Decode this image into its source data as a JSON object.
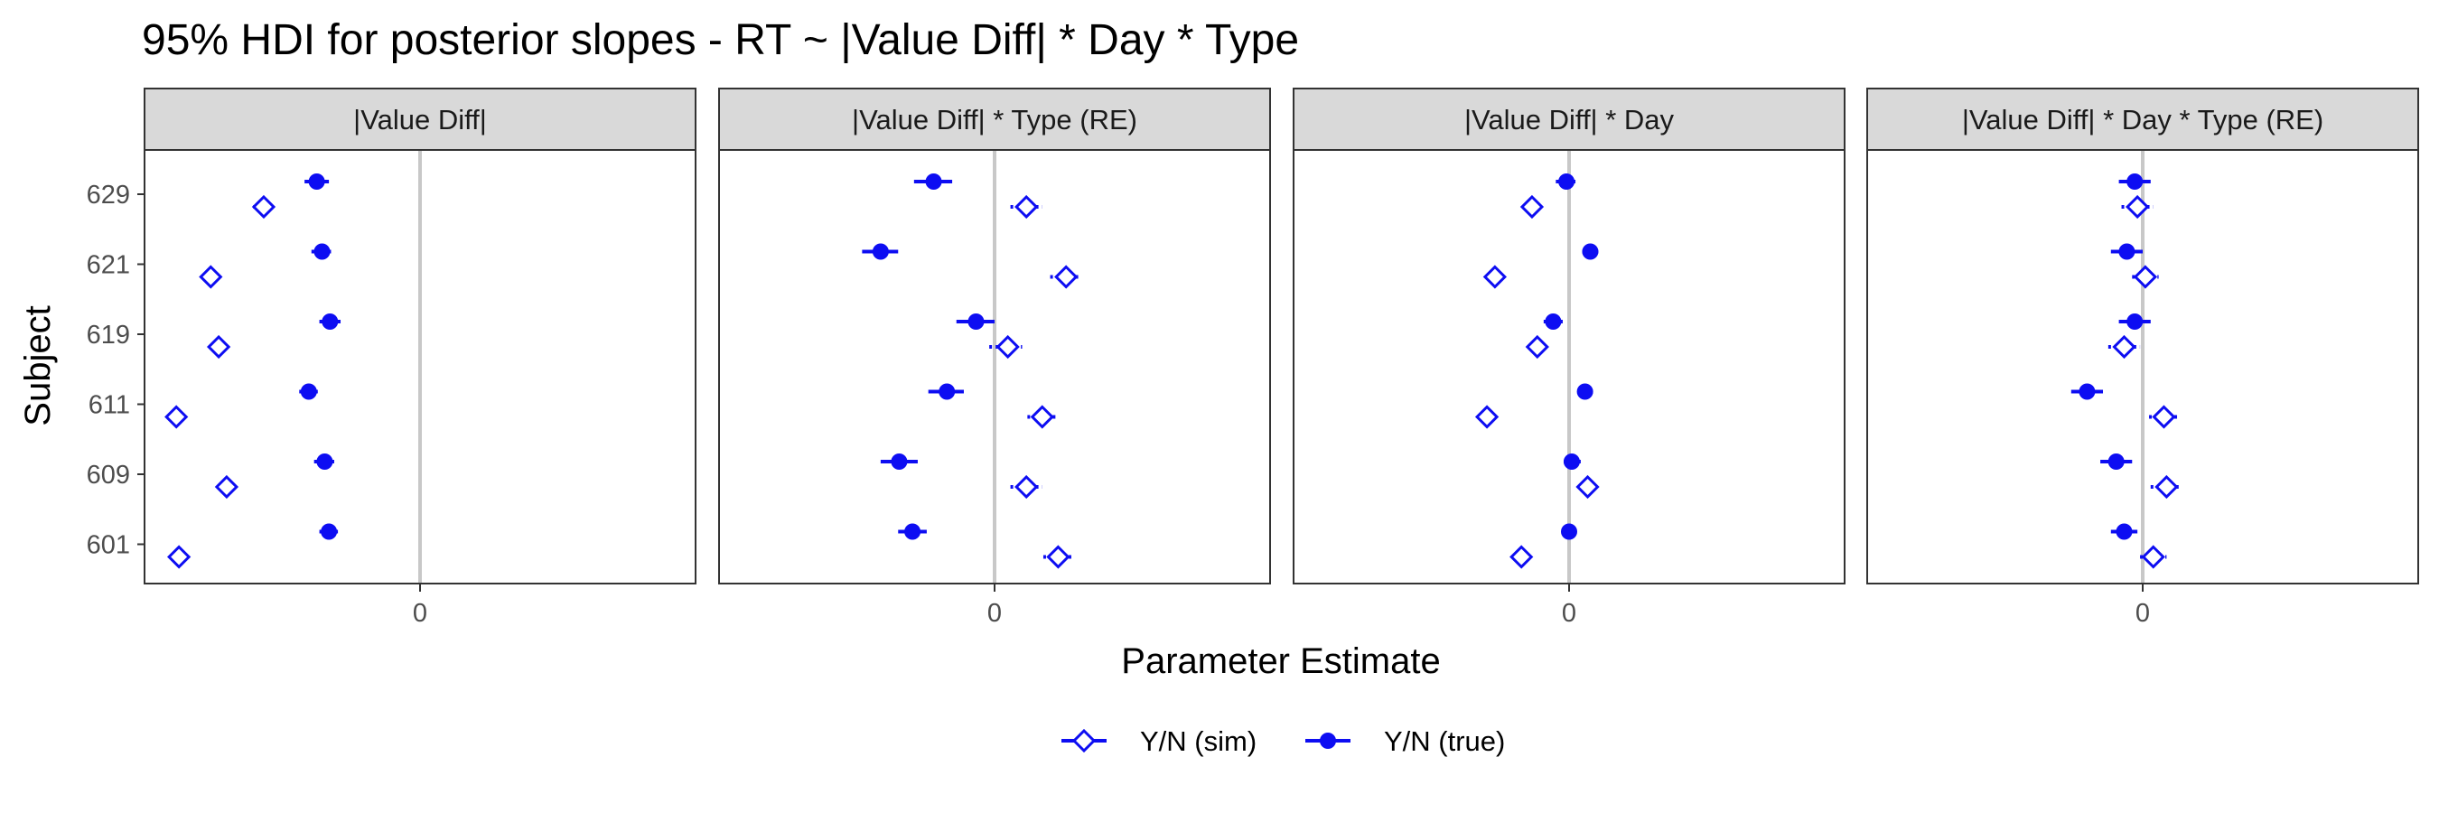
{
  "chart_data": {
    "type": "scatter",
    "subtype": "faceted point-range (HDI intervals)",
    "title": "95% HDI for posterior slopes - RT ~ |Value Diff| * Day * Type",
    "xlabel": "Parameter Estimate",
    "ylabel": "Subject",
    "subjects": [
      "629",
      "621",
      "619",
      "611",
      "609",
      "601"
    ],
    "x_tick": 0,
    "x_tick_label": "0",
    "reference_line": 0,
    "grid": false,
    "legend_position": "bottom",
    "colors": {
      "series": "#0d0df2",
      "refline": "#c8c8c8",
      "strip_bg": "#d9d9d9"
    },
    "series": [
      {
        "name": "Y/N (sim)",
        "marker": "open-diamond"
      },
      {
        "name": "Y/N (true)",
        "marker": "filled-circle"
      }
    ],
    "facets": [
      {
        "label": "|Value Diff|",
        "xlim": [
          -0.052,
          0.052
        ],
        "points": {
          "Y/N (true)": [
            {
              "subject": "629",
              "est": -0.0195,
              "lo": -0.0218,
              "hi": -0.0172
            },
            {
              "subject": "621",
              "est": -0.0185,
              "lo": -0.0205,
              "hi": -0.0168
            },
            {
              "subject": "619",
              "est": -0.017,
              "lo": -0.019,
              "hi": -0.015
            },
            {
              "subject": "611",
              "est": -0.021,
              "lo": -0.0228,
              "hi": -0.0193
            },
            {
              "subject": "609",
              "est": -0.018,
              "lo": -0.02,
              "hi": -0.0162
            },
            {
              "subject": "601",
              "est": -0.0172,
              "lo": -0.019,
              "hi": -0.0155
            }
          ],
          "Y/N (sim)": [
            {
              "subject": "629",
              "est": -0.0295,
              "lo": -0.0315,
              "hi": -0.0277
            },
            {
              "subject": "621",
              "est": -0.0395,
              "lo": -0.0412,
              "hi": -0.0378
            },
            {
              "subject": "619",
              "est": -0.038,
              "lo": -0.0398,
              "hi": -0.0363
            },
            {
              "subject": "611",
              "est": -0.046,
              "lo": -0.0476,
              "hi": -0.0444
            },
            {
              "subject": "609",
              "est": -0.0365,
              "lo": -0.0382,
              "hi": -0.0348
            },
            {
              "subject": "601",
              "est": -0.0455,
              "lo": -0.0472,
              "hi": -0.044
            }
          ]
        }
      },
      {
        "label": "|Value Diff| * Type (RE)",
        "xlim": [
          -0.052,
          0.052
        ],
        "points": {
          "Y/N (true)": [
            {
              "subject": "629",
              "est": -0.0115,
              "lo": -0.0152,
              "hi": -0.008
            },
            {
              "subject": "621",
              "est": -0.0215,
              "lo": -0.025,
              "hi": -0.0182
            },
            {
              "subject": "619",
              "est": -0.0035,
              "lo": -0.0072,
              "hi": 0.0
            },
            {
              "subject": "611",
              "est": -0.009,
              "lo": -0.0125,
              "hi": -0.0058
            },
            {
              "subject": "609",
              "est": -0.018,
              "lo": -0.0215,
              "hi": -0.0145
            },
            {
              "subject": "601",
              "est": -0.0155,
              "lo": -0.0182,
              "hi": -0.0128
            }
          ],
          "Y/N (sim)": [
            {
              "subject": "629",
              "est": 0.006,
              "lo": 0.003,
              "hi": 0.009
            },
            {
              "subject": "621",
              "est": 0.0135,
              "lo": 0.0105,
              "hi": 0.0162
            },
            {
              "subject": "619",
              "est": 0.0025,
              "lo": -0.001,
              "hi": 0.0052
            },
            {
              "subject": "611",
              "est": 0.009,
              "lo": 0.0062,
              "hi": 0.012
            },
            {
              "subject": "609",
              "est": 0.006,
              "lo": 0.003,
              "hi": 0.009
            },
            {
              "subject": "601",
              "est": 0.012,
              "lo": 0.0092,
              "hi": 0.0148
            }
          ]
        }
      },
      {
        "label": "|Value Diff| * Day",
        "xlim": [
          -0.052,
          0.052
        ],
        "points": {
          "Y/N (true)": [
            {
              "subject": "629",
              "est": -0.0005,
              "lo": -0.0025,
              "hi": 0.0012
            },
            {
              "subject": "621",
              "est": 0.004,
              "lo": 0.0025,
              "hi": 0.0055
            },
            {
              "subject": "619",
              "est": -0.003,
              "lo": -0.0048,
              "hi": -0.0012
            },
            {
              "subject": "611",
              "est": 0.003,
              "lo": 0.0018,
              "hi": 0.0045
            },
            {
              "subject": "609",
              "est": 0.0005,
              "lo": -0.001,
              "hi": 0.0022
            },
            {
              "subject": "601",
              "est": 0.0,
              "lo": -0.0013,
              "hi": 0.0012
            }
          ],
          "Y/N (sim)": [
            {
              "subject": "629",
              "est": -0.007,
              "lo": -0.0085,
              "hi": -0.0055
            },
            {
              "subject": "621",
              "est": -0.014,
              "lo": -0.0155,
              "hi": -0.0125
            },
            {
              "subject": "619",
              "est": -0.006,
              "lo": -0.0075,
              "hi": -0.0045
            },
            {
              "subject": "611",
              "est": -0.0155,
              "lo": -0.017,
              "hi": -0.014
            },
            {
              "subject": "609",
              "est": 0.0035,
              "lo": 0.002,
              "hi": 0.005
            },
            {
              "subject": "601",
              "est": -0.009,
              "lo": -0.0105,
              "hi": -0.0075
            }
          ]
        }
      },
      {
        "label": "|Value Diff| * Day * Type (RE)",
        "xlim": [
          -0.052,
          0.052
        ],
        "points": {
          "Y/N (true)": [
            {
              "subject": "629",
              "est": -0.0015,
              "lo": -0.0045,
              "hi": 0.0015
            },
            {
              "subject": "621",
              "est": -0.003,
              "lo": -0.006,
              "hi": 0.0
            },
            {
              "subject": "619",
              "est": -0.0015,
              "lo": -0.0045,
              "hi": 0.0015
            },
            {
              "subject": "611",
              "est": -0.0105,
              "lo": -0.0135,
              "hi": -0.0075
            },
            {
              "subject": "609",
              "est": -0.005,
              "lo": -0.008,
              "hi": -0.002
            },
            {
              "subject": "601",
              "est": -0.0035,
              "lo": -0.006,
              "hi": -0.001
            }
          ],
          "Y/N (sim)": [
            {
              "subject": "629",
              "est": -0.001,
              "lo": -0.004,
              "hi": 0.002
            },
            {
              "subject": "621",
              "est": 0.0005,
              "lo": -0.002,
              "hi": 0.003
            },
            {
              "subject": "619",
              "est": -0.0035,
              "lo": -0.0065,
              "hi": -0.0005
            },
            {
              "subject": "611",
              "est": 0.004,
              "lo": 0.0012,
              "hi": 0.0068
            },
            {
              "subject": "609",
              "est": 0.0045,
              "lo": 0.0015,
              "hi": 0.0072
            },
            {
              "subject": "601",
              "est": 0.002,
              "lo": -0.0005,
              "hi": 0.0045
            }
          ]
        }
      }
    ]
  }
}
